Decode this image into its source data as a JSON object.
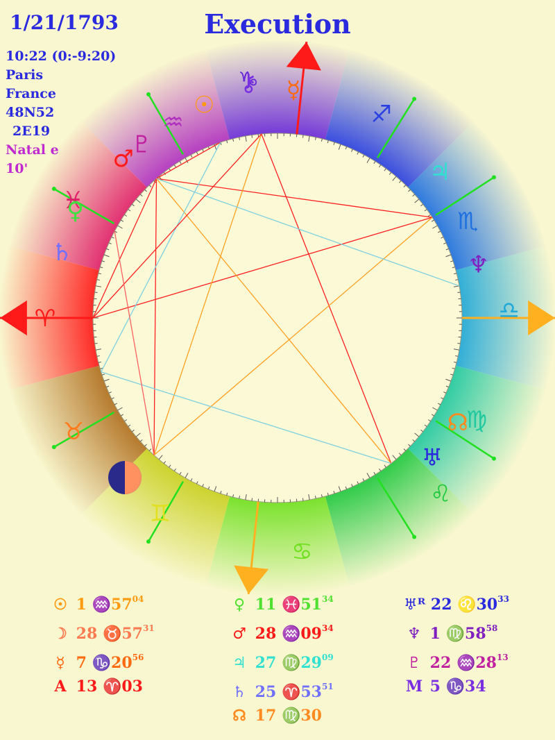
{
  "header": {
    "date": "1/21/1793",
    "title": "Execution",
    "time": "10:22 (0:-9:20)",
    "city": "Paris",
    "country": "France",
    "latitude": "48N52",
    "longitude": "2E19",
    "chart_type": "Natal e",
    "orb": "10'"
  },
  "wheel_glyphs": [
    {
      "name": "aries-sign-glyph",
      "glyph": "♈",
      "color": "#ff1a1a"
    },
    {
      "name": "pisces-sign-glyph",
      "glyph": "♓",
      "color": "#e0206a"
    },
    {
      "name": "aquarius-sign-glyph",
      "glyph": "♒",
      "color": "#b030c0"
    },
    {
      "name": "capricorn-sign-glyph",
      "glyph": "♑",
      "color": "#6a2ad8"
    },
    {
      "name": "sagittarius-sign-glyph",
      "glyph": "♐",
      "color": "#2a40e0"
    },
    {
      "name": "scorpio-sign-glyph",
      "glyph": "♏",
      "color": "#1e70e0"
    },
    {
      "name": "libra-sign-glyph",
      "glyph": "♎",
      "color": "#20a8d8"
    },
    {
      "name": "virgo-sign-glyph",
      "glyph": "♍",
      "color": "#20c8a0"
    },
    {
      "name": "leo-sign-glyph",
      "glyph": "♌",
      "color": "#20c840"
    },
    {
      "name": "cancer-sign-glyph",
      "glyph": "♋",
      "color": "#70e020"
    },
    {
      "name": "gemini-sign-glyph",
      "glyph": "♊",
      "color": "#e0e020"
    },
    {
      "name": "taurus-sign-glyph",
      "glyph": "♉",
      "color": "#ff7a1a"
    },
    {
      "name": "sun-planet-glyph",
      "glyph": "☉",
      "color": "#ff9a10"
    },
    {
      "name": "mercury-planet-glyph",
      "glyph": "☿",
      "color": "#ff6a10"
    },
    {
      "name": "chiron-planet-glyph",
      "glyph": "⚷",
      "color": "#7a30e0"
    },
    {
      "name": "venus-planet-glyph",
      "glyph": "♀",
      "color": "#40e040"
    },
    {
      "name": "mars-planet-glyph",
      "glyph": "♂",
      "color": "#ff1a1a"
    },
    {
      "name": "pluto-planet-glyph",
      "glyph": "♇",
      "color": "#c020a0"
    },
    {
      "name": "jupiter-planet-glyph",
      "glyph": "♃",
      "color": "#30e0d0"
    },
    {
      "name": "neptune-planet-glyph",
      "glyph": "♆",
      "color": "#8020c0"
    },
    {
      "name": "uranus-planet-glyph",
      "glyph": "♅",
      "color": "#2a2adf"
    },
    {
      "name": "saturn-planet-glyph",
      "glyph": "♄",
      "color": "#7070ff"
    },
    {
      "name": "node-planet-glyph",
      "glyph": "☊",
      "color": "#ff8a20"
    }
  ],
  "positions_left": [
    {
      "glyph": "☉",
      "color": "#ff9a10",
      "deg": "1",
      "sign": "♒",
      "min": "57",
      "sec": "04"
    },
    {
      "glyph": "☽",
      "color": "#ff7a50",
      "deg": "28",
      "sign": "♉",
      "min": "57",
      "sec": "31"
    },
    {
      "glyph": "☿",
      "color": "#ff6a10",
      "deg": "7",
      "sign": "♑",
      "min": "20",
      "sec": "56"
    },
    {
      "glyph": "A",
      "color": "#ff1a1a",
      "deg": "13",
      "sign": "♈",
      "min": "03",
      "sec": ""
    }
  ],
  "positions_middle": [
    {
      "glyph": "♀",
      "color": "#50e030",
      "deg": "11",
      "sign": "♓",
      "min": "51",
      "sec": "34"
    },
    {
      "glyph": "♂",
      "color": "#ff1a1a",
      "deg": "28",
      "sign": "♒",
      "min": "09",
      "sec": "34"
    },
    {
      "glyph": "♃",
      "color": "#30e0d0",
      "deg": "27",
      "sign": "♍",
      "min": "29",
      "sec": "09"
    },
    {
      "glyph": "♄",
      "color": "#7070ff",
      "deg": "25",
      "sign": "♈",
      "min": "53",
      "sec": "51"
    },
    {
      "glyph": "☊",
      "color": "#ff8a20",
      "deg": "17",
      "sign": "♍",
      "min": "30",
      "sec": ""
    }
  ],
  "positions_right": [
    {
      "glyph": "♅ᴿ",
      "color": "#2a2adf",
      "deg": "22",
      "sign": "♌",
      "min": "30",
      "sec": "33"
    },
    {
      "glyph": "♆",
      "color": "#8020c0",
      "deg": "1",
      "sign": "♍",
      "min": "58",
      "sec": "58"
    },
    {
      "glyph": "♇",
      "color": "#c020a0",
      "deg": "22",
      "sign": "♒",
      "min": "28",
      "sec": "13"
    },
    {
      "glyph": "M",
      "color": "#7a30e0",
      "deg": "5",
      "sign": "♑",
      "min": "34",
      "sec": ""
    }
  ]
}
